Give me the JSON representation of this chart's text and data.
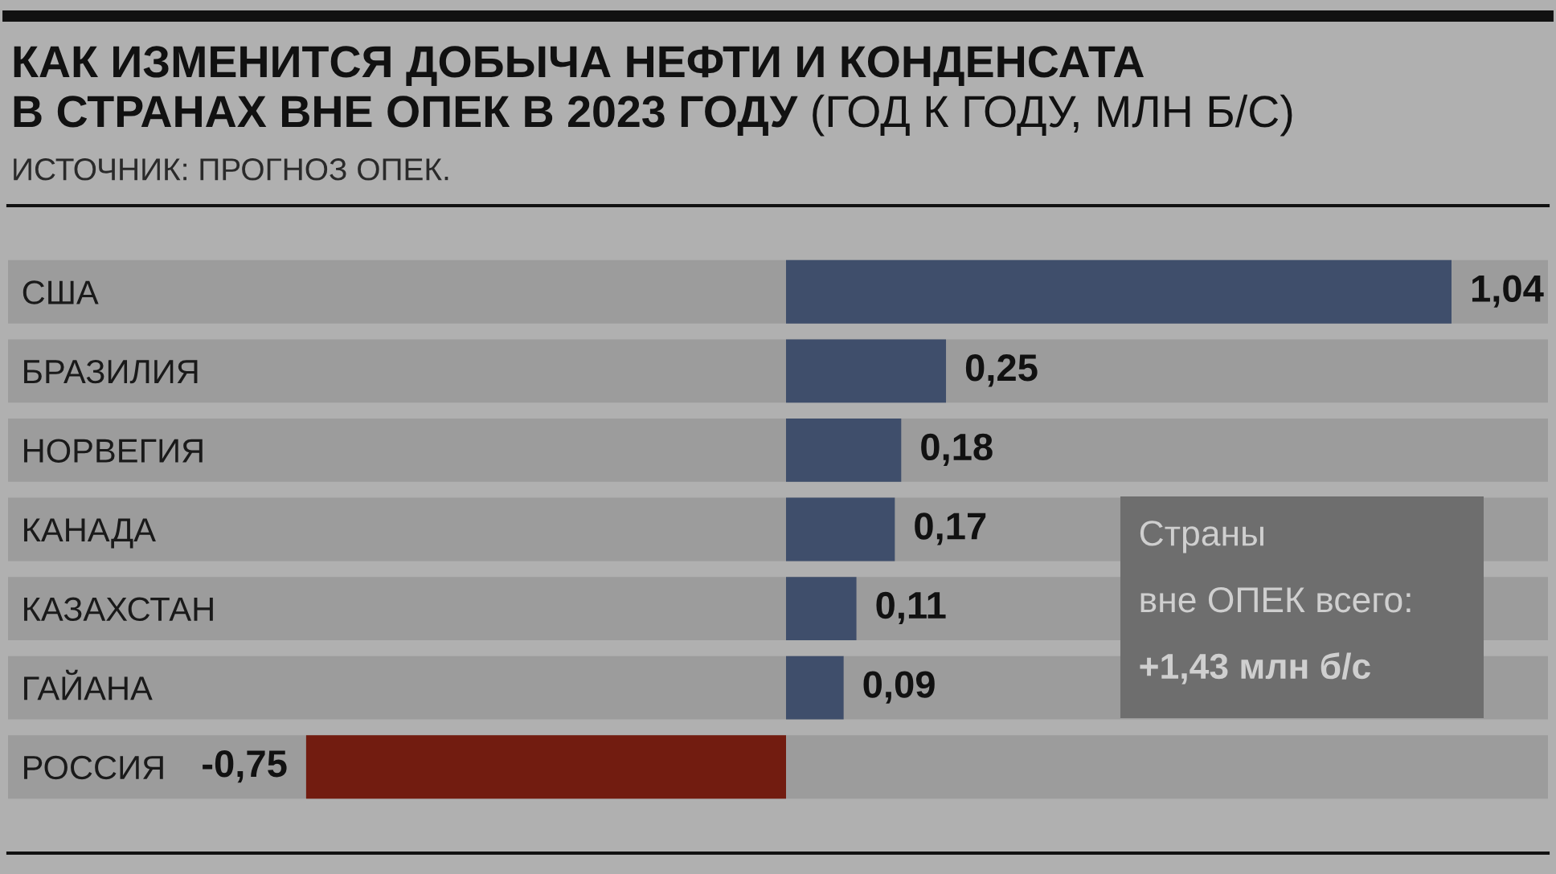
{
  "chart_data": {
    "type": "bar",
    "orientation": "horizontal",
    "title": "КАК ИЗМЕНИТСЯ ДОБЫЧА НЕФТИ И КОНДЕНСАТА\nВ СТРАНАХ ВНЕ ОПЕК В 2023 ГОДУ",
    "subtitle": "(ГОД К ГОДУ, МЛН Б/С)",
    "categories": [
      "США",
      "БРАЗИЛИЯ",
      "НОРВЕГИЯ",
      "КАНАДА",
      "КАЗАХСТАН",
      "ГАЙАНА",
      "РОССИЯ"
    ],
    "values": [
      1.04,
      0.25,
      0.18,
      0.17,
      0.11,
      0.09,
      -0.75
    ],
    "colors": [
      "#3f4e6b",
      "#3f4e6b",
      "#3f4e6b",
      "#3f4e6b",
      "#3f4e6b",
      "#3f4e6b",
      "#721c10"
    ],
    "value_labels": [
      "1,04",
      "0,25",
      "0,18",
      "0,17",
      "0,11",
      "0,09",
      "-0,75"
    ],
    "annotations": [
      "ИСТОЧНИК: ПРОГНОЗ ОПЕК.",
      "Страны\nвне ОПЕК всего:\n+1,43 млн б/с"
    ],
    "grid": false,
    "legend": false
  }
}
